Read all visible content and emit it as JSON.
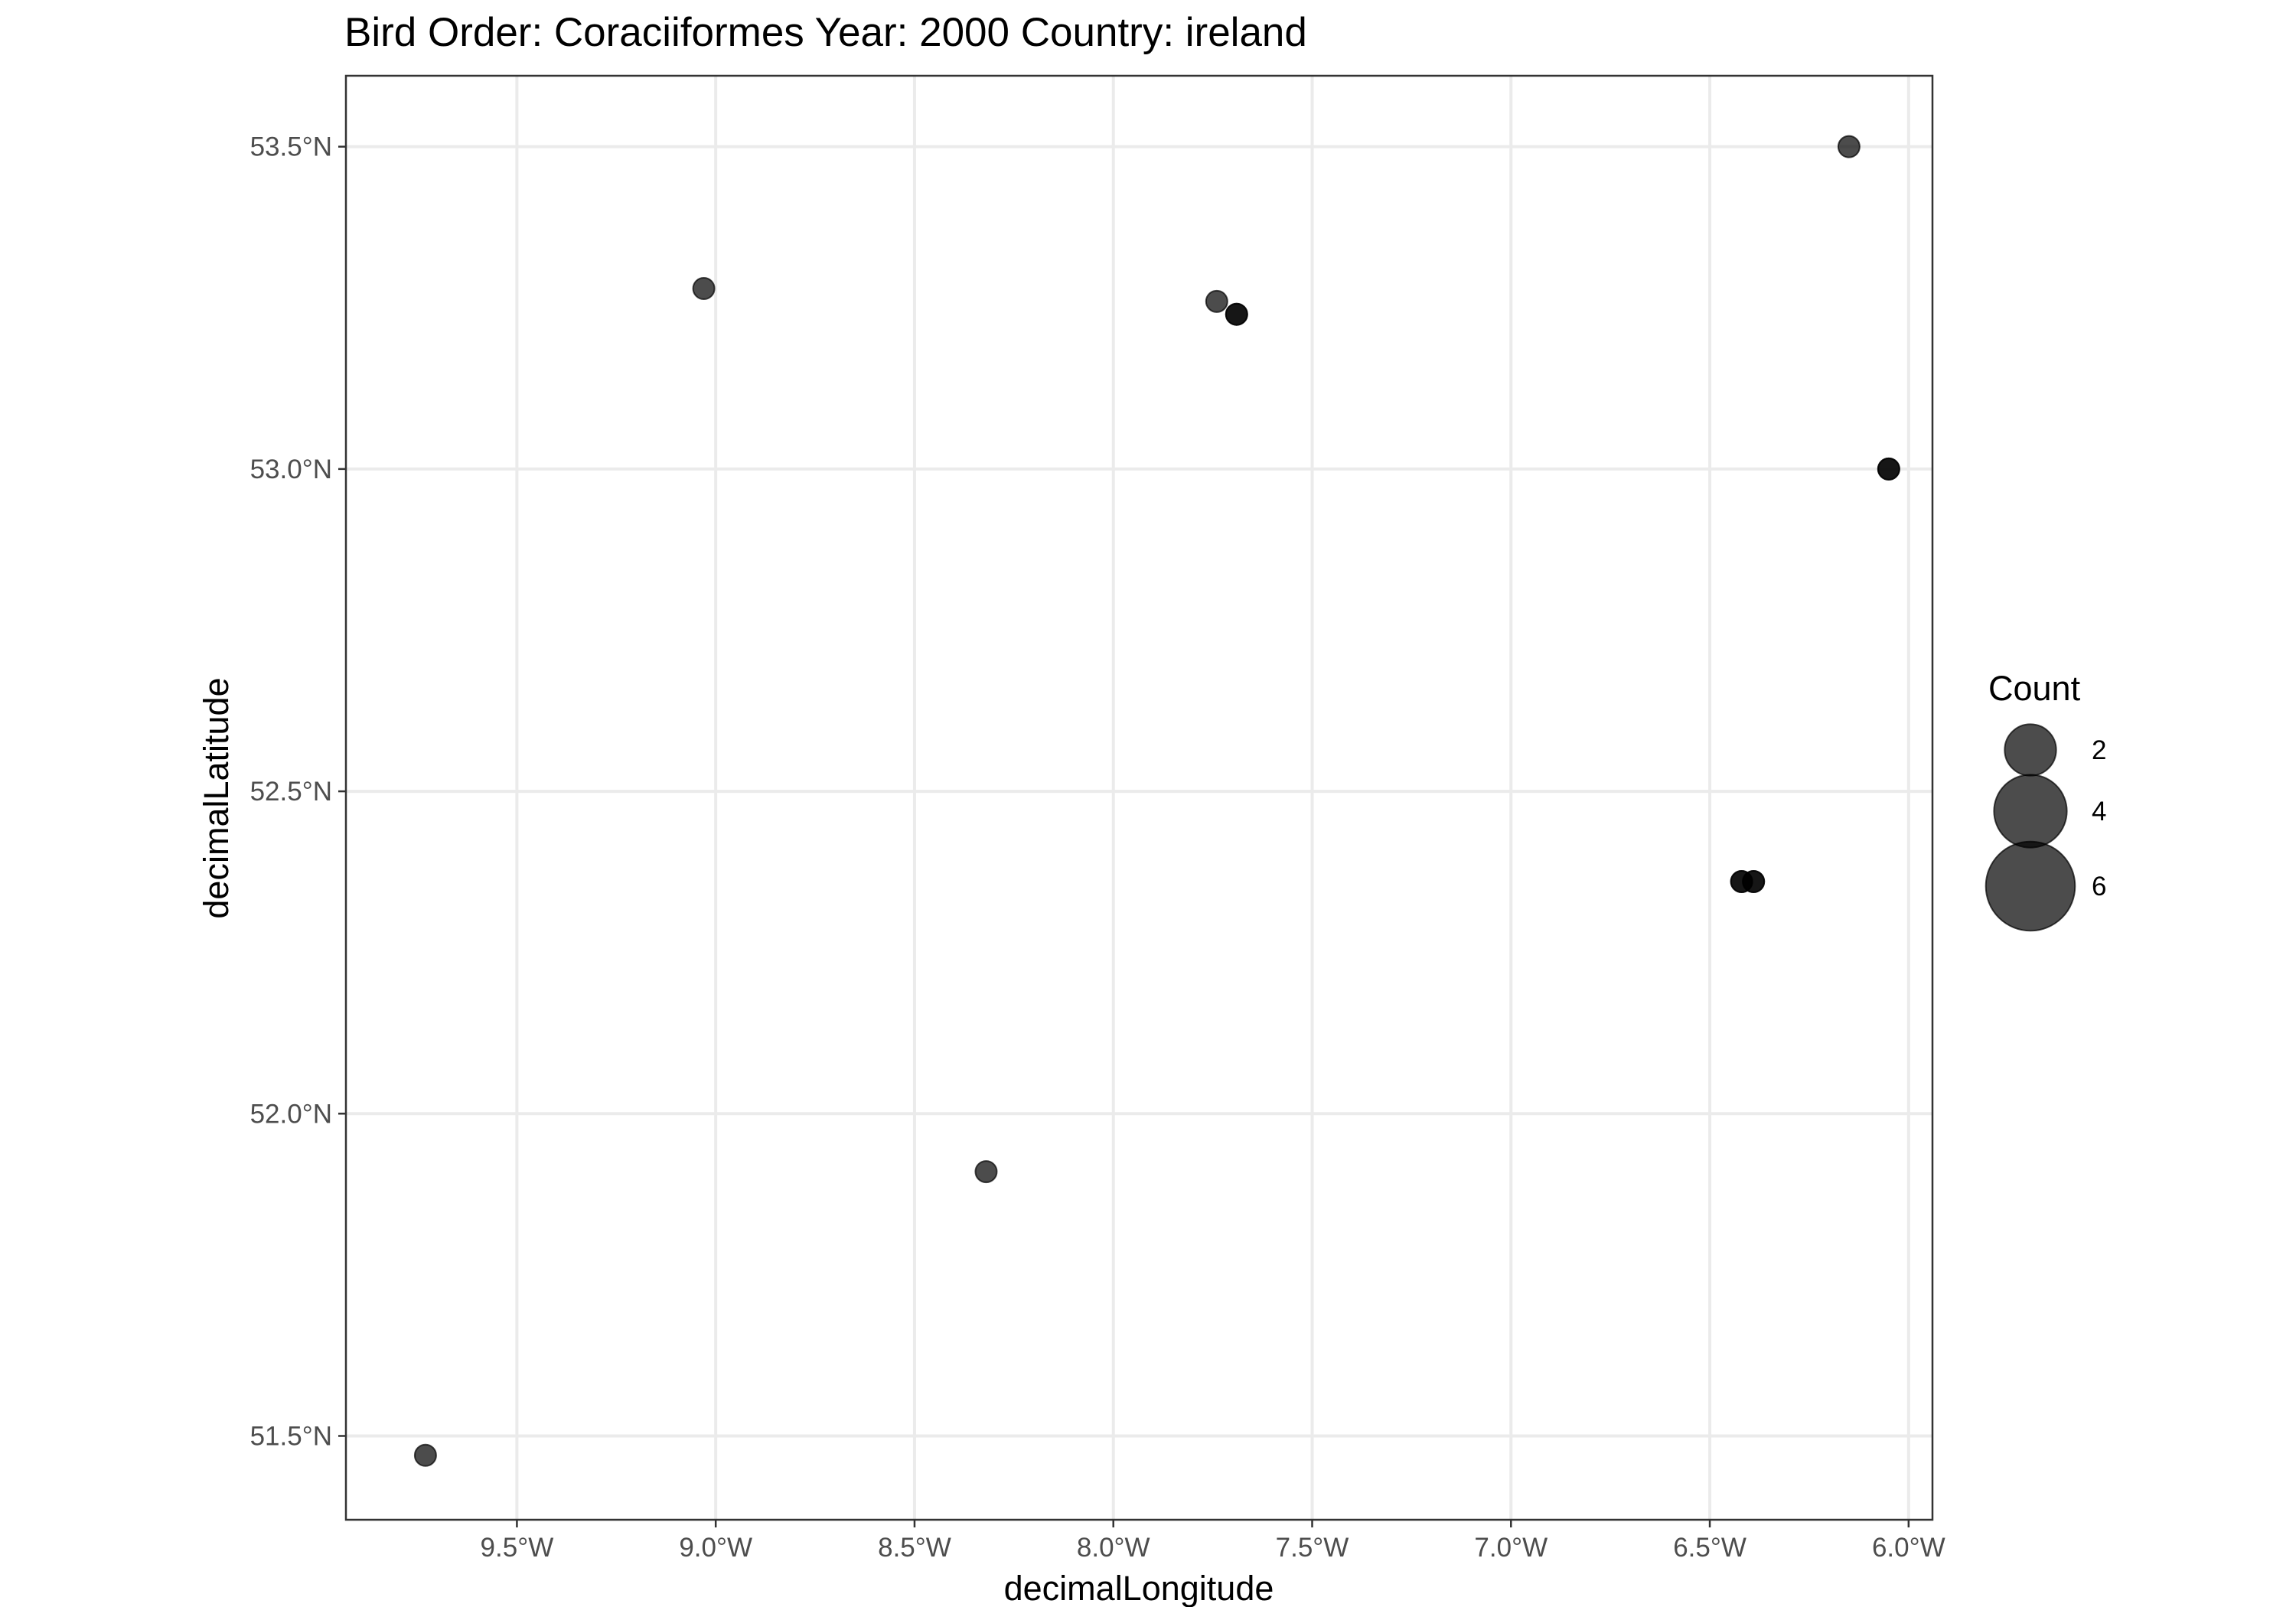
{
  "chart_data": {
    "type": "scatter",
    "title": "Bird Order: Coraciiformes Year: 2000 Country: ireland",
    "xlabel": "decimalLongitude",
    "ylabel": "decimalLatitude",
    "xlim": [
      -9.93,
      -5.94
    ],
    "ylim": [
      51.37,
      53.61
    ],
    "x_ticks": [
      -9.5,
      -9.0,
      -8.5,
      -8.0,
      -7.5,
      -7.0,
      -6.5,
      -6.0
    ],
    "x_tick_labels": [
      "9.5°W",
      "9.0°W",
      "8.5°W",
      "8.0°W",
      "7.5°W",
      "7.0°W",
      "6.5°W",
      "6.0°W"
    ],
    "y_ticks": [
      51.5,
      52.0,
      52.5,
      53.0,
      53.5
    ],
    "y_tick_labels": [
      "51.5°N",
      "52.0°N",
      "52.5°N",
      "53.0°N",
      "53.5°N"
    ],
    "grid": true,
    "size_legend": {
      "title": "Count",
      "values": [
        2,
        4,
        6
      ],
      "labels": [
        "2",
        "4",
        "6"
      ],
      "position": "right"
    },
    "points": [
      {
        "x": -9.73,
        "y": 51.47,
        "count": 1
      },
      {
        "x": -9.03,
        "y": 53.28,
        "count": 1
      },
      {
        "x": -8.32,
        "y": 51.91,
        "count": 1
      },
      {
        "x": -7.74,
        "y": 53.26,
        "count": 1
      },
      {
        "x": -7.69,
        "y": 53.24,
        "count": 1
      },
      {
        "x": -7.69,
        "y": 53.24,
        "count": 1
      },
      {
        "x": -6.42,
        "y": 52.36,
        "count": 1
      },
      {
        "x": -6.42,
        "y": 52.36,
        "count": 1
      },
      {
        "x": -6.39,
        "y": 52.36,
        "count": 1
      },
      {
        "x": -6.39,
        "y": 52.36,
        "count": 1
      },
      {
        "x": -6.15,
        "y": 53.5,
        "count": 1
      },
      {
        "x": -6.05,
        "y": 53.0,
        "count": 1
      },
      {
        "x": -6.05,
        "y": 53.0,
        "count": 1
      }
    ]
  }
}
